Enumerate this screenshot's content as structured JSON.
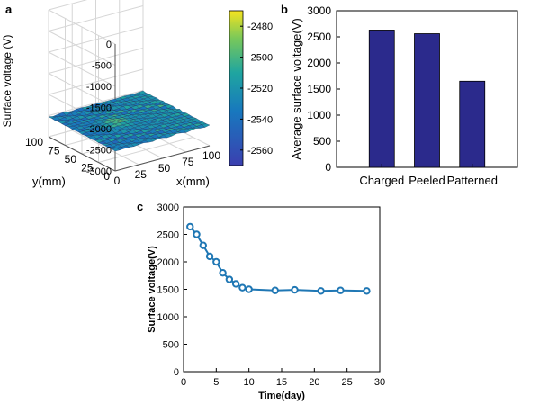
{
  "panels": {
    "a": "a",
    "b": "b",
    "c": "c"
  },
  "colors": {
    "bar": "#2b2a8c",
    "line": "#1f77b4",
    "surface_low": "#3b3fb0",
    "surface_mid": "#1fa5a0",
    "surface_high": "#f5e31f"
  },
  "chart_data": [
    {
      "id": "a",
      "type": "heatmap",
      "subtype": "3d-surface",
      "zlabel": "Surface voltage (V)",
      "xlabel": "x(mm)",
      "ylabel": "y(mm)",
      "z_ticks": [
        "-3000",
        "-2500",
        "-2000",
        "-1500",
        "-1000",
        "-500",
        "0"
      ],
      "x_ticks": [
        "0",
        "25",
        "50",
        "75",
        "100"
      ],
      "y_ticks": [
        "0",
        "25",
        "50",
        "75",
        "100"
      ],
      "zlim": [
        -3000,
        0
      ],
      "xlim": [
        0,
        100
      ],
      "ylim": [
        0,
        100
      ],
      "colorbar_ticks": [
        "-2480",
        "-2500",
        "-2520",
        "-2540",
        "-2560"
      ],
      "colorbar_range": [
        -2570,
        -2470
      ],
      "grid": true
    },
    {
      "id": "b",
      "type": "bar",
      "categories": [
        "Charged",
        "Peeled",
        "Patterned"
      ],
      "values": [
        2630,
        2560,
        1650
      ],
      "ylabel": "Average surface voltage(V)",
      "ylim": [
        0,
        3000
      ],
      "y_ticks": [
        "0",
        "500",
        "1000",
        "1500",
        "2000",
        "2500",
        "3000"
      ]
    },
    {
      "id": "c",
      "type": "line",
      "x": [
        1,
        2,
        3,
        4,
        5,
        6,
        7,
        8,
        9,
        10,
        14,
        17,
        21,
        24,
        28
      ],
      "y": [
        2640,
        2500,
        2300,
        2100,
        2000,
        1800,
        1680,
        1600,
        1530,
        1500,
        1480,
        1490,
        1470,
        1480,
        1470
      ],
      "xlabel": "Time(day)",
      "ylabel": "Surface voltage(V)",
      "xlim": [
        0,
        30
      ],
      "ylim": [
        0,
        3000
      ],
      "x_ticks": [
        "0",
        "5",
        "10",
        "15",
        "20",
        "25",
        "30"
      ],
      "y_ticks": [
        "0",
        "500",
        "1000",
        "1500",
        "2000",
        "2500",
        "3000"
      ]
    }
  ]
}
